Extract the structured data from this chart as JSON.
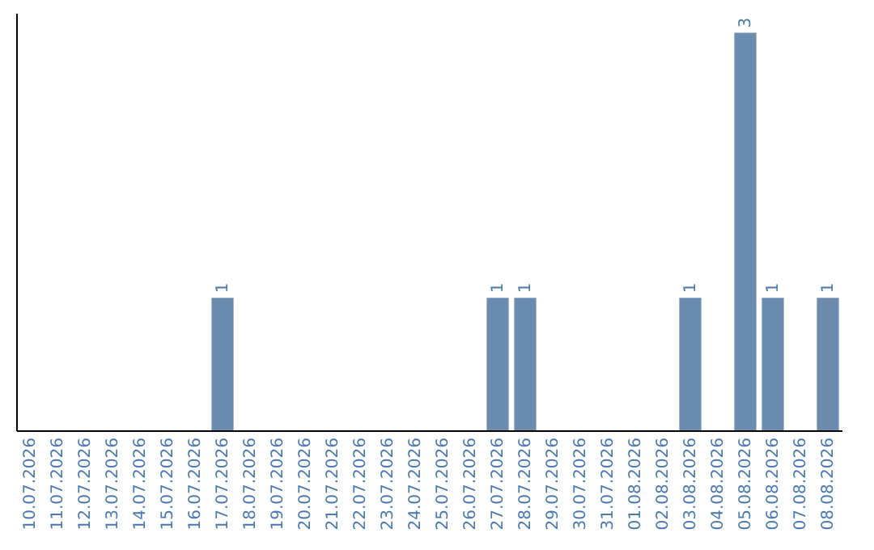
{
  "chart_data": {
    "type": "bar",
    "categories": [
      "10.07.2026",
      "11.07.2026",
      "12.07.2026",
      "13.07.2026",
      "14.07.2026",
      "15.07.2026",
      "16.07.2026",
      "17.07.2026",
      "18.07.2026",
      "19.07.2026",
      "20.07.2026",
      "21.07.2026",
      "22.07.2026",
      "23.07.2026",
      "24.07.2026",
      "25.07.2026",
      "26.07.2026",
      "27.07.2026",
      "28.07.2026",
      "29.07.2026",
      "30.07.2026",
      "31.07.2026",
      "01.08.2026",
      "02.08.2026",
      "03.08.2026",
      "04.08.2026",
      "05.08.2026",
      "06.08.2026",
      "07.08.2026",
      "08.08.2026"
    ],
    "values": [
      0,
      0,
      0,
      0,
      0,
      0,
      0,
      1,
      0,
      0,
      0,
      0,
      0,
      0,
      0,
      0,
      0,
      1,
      1,
      0,
      0,
      0,
      0,
      0,
      1,
      0,
      3,
      1,
      0,
      1
    ],
    "value_labels": [
      null,
      null,
      null,
      null,
      null,
      null,
      null,
      "1",
      null,
      null,
      null,
      null,
      null,
      null,
      null,
      null,
      null,
      "1",
      "1",
      null,
      null,
      null,
      null,
      null,
      "1",
      null,
      "3",
      "1",
      null,
      "1"
    ],
    "color": "#6b8cae",
    "ylim": [
      0,
      3.15
    ],
    "tick_labels": "x",
    "grid": false
  }
}
